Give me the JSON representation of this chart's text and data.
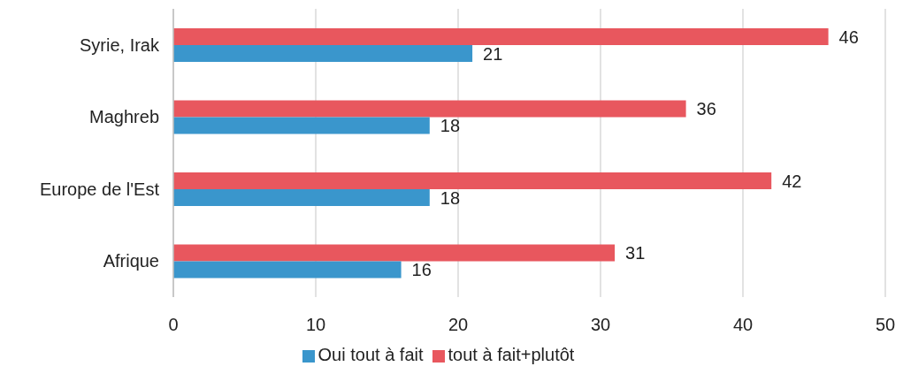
{
  "chart_data": {
    "type": "bar",
    "orientation": "horizontal",
    "categories": [
      "Syrie, Irak",
      "Maghreb",
      "Europe de l'Est",
      "Afrique"
    ],
    "series": [
      {
        "name": "tout à fait+plutôt",
        "color": "#e8575e",
        "values": [
          46,
          36,
          42,
          31
        ]
      },
      {
        "name": "Oui tout à fait",
        "color": "#3a96cc",
        "values": [
          21,
          18,
          18,
          16
        ]
      }
    ],
    "xlim": [
      0,
      50
    ],
    "xticks": [
      0,
      10,
      20,
      30,
      40,
      50
    ],
    "grid": "x",
    "legend": "bottom",
    "data_labels": true
  }
}
